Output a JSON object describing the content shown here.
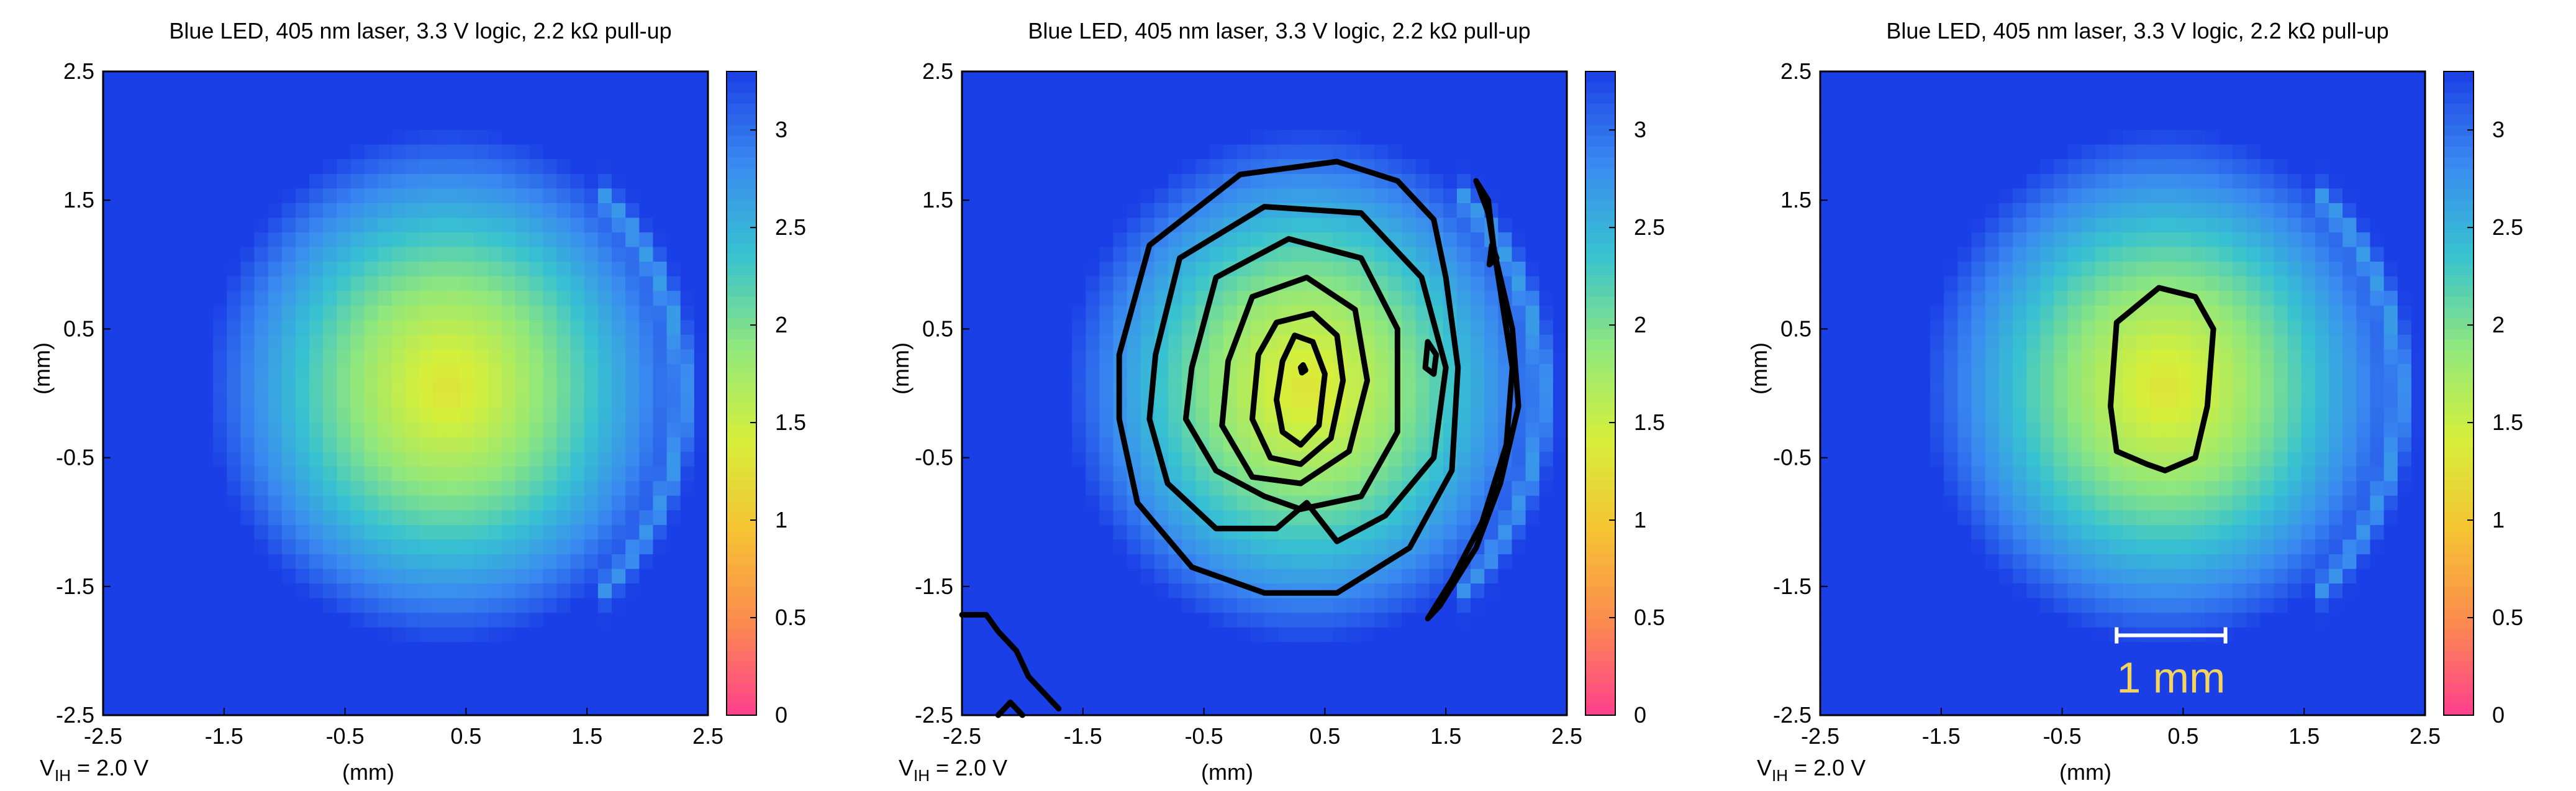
{
  "footer": {
    "label": "V",
    "subscript": "IH",
    "value": " = 2.0 V"
  },
  "colorbar": {
    "min": 0,
    "max": 3.3,
    "ticks": [
      "0",
      "0.5",
      "1",
      "1.5",
      "2",
      "2.5",
      "3"
    ],
    "colors": [
      "#ff3f8e",
      "#fb8a4f",
      "#f5c233",
      "#d6ef3a",
      "#8fe77d",
      "#37c2d1",
      "#3a8af0",
      "#1b3fe6"
    ]
  },
  "chart_data": [
    {
      "type": "heatmap",
      "title": "Blue LED, 405 nm laser, 3.3 V logic, 2.2 kΩ pull-up",
      "xlabel": "(mm)",
      "ylabel": "(mm)",
      "xlim": [
        -2.5,
        2.5
      ],
      "ylim": [
        -2.5,
        2.5
      ],
      "xticks": [
        "-2.5",
        "-1.5",
        "-0.5",
        "0.5",
        "1.5",
        "2.5"
      ],
      "yticks": [
        "2.5",
        "1.5",
        "0.5",
        "-0.5",
        "-1.5",
        "-2.5"
      ],
      "z_range": [
        0,
        3.3
      ],
      "field": {
        "center": [
          0.35,
          0.05
        ],
        "min_value": 1.3,
        "ring_center": [
          0.2,
          0.0
        ],
        "ring_radius": 2.1,
        "ring_x_min": 1.6
      },
      "contours": []
    },
    {
      "type": "heatmap",
      "title": "Blue LED, 405 nm laser, 3.3 V logic, 2.2 kΩ pull-up",
      "xlabel": "(mm)",
      "ylabel": "(mm)",
      "xlim": [
        -2.5,
        2.5
      ],
      "ylim": [
        -2.5,
        2.5
      ],
      "xticks": [
        "-2.5",
        "-1.5",
        "-0.5",
        "0.5",
        "1.5",
        "2.5"
      ],
      "yticks": [
        "2.5",
        "1.5",
        "0.5",
        "-0.5",
        "-1.5",
        "-2.5"
      ],
      "z_range": [
        0,
        3.3
      ],
      "field": {
        "center": [
          0.35,
          0.05
        ],
        "min_value": 1.3,
        "ring_center": [
          0.2,
          0.0
        ],
        "ring_radius": 2.1,
        "ring_x_min": 1.6
      },
      "contours": [
        [
          [
            0.3,
            0.2
          ],
          [
            0.32,
            0.22
          ],
          [
            0.34,
            0.18
          ],
          [
            0.31,
            0.16
          ],
          [
            0.3,
            0.2
          ]
        ],
        [
          [
            0.15,
            0.25
          ],
          [
            0.25,
            0.45
          ],
          [
            0.4,
            0.4
          ],
          [
            0.5,
            0.15
          ],
          [
            0.45,
            -0.25
          ],
          [
            0.3,
            -0.4
          ],
          [
            0.15,
            -0.3
          ],
          [
            0.1,
            -0.05
          ],
          [
            0.15,
            0.25
          ]
        ],
        [
          [
            -0.05,
            0.3
          ],
          [
            0.1,
            0.55
          ],
          [
            0.4,
            0.62
          ],
          [
            0.6,
            0.45
          ],
          [
            0.65,
            0.1
          ],
          [
            0.55,
            -0.35
          ],
          [
            0.3,
            -0.55
          ],
          [
            0.05,
            -0.5
          ],
          [
            -0.1,
            -0.2
          ],
          [
            -0.05,
            0.3
          ]
        ],
        [
          [
            -0.3,
            0.25
          ],
          [
            -0.1,
            0.75
          ],
          [
            0.35,
            0.9
          ],
          [
            0.75,
            0.65
          ],
          [
            0.85,
            0.1
          ],
          [
            0.7,
            -0.45
          ],
          [
            0.3,
            -0.7
          ],
          [
            -0.1,
            -0.65
          ],
          [
            -0.35,
            -0.25
          ],
          [
            -0.3,
            0.25
          ]
        ],
        [
          [
            -0.6,
            0.2
          ],
          [
            -0.4,
            0.9
          ],
          [
            0.2,
            1.2
          ],
          [
            0.8,
            1.05
          ],
          [
            1.1,
            0.5
          ],
          [
            1.1,
            -0.3
          ],
          [
            0.8,
            -0.8
          ],
          [
            0.3,
            -0.9
          ],
          [
            0.0,
            -0.8
          ],
          [
            -0.4,
            -0.6
          ],
          [
            -0.65,
            -0.2
          ],
          [
            -0.6,
            0.2
          ]
        ],
        [
          [
            -0.9,
            0.3
          ],
          [
            -0.7,
            1.05
          ],
          [
            0.0,
            1.45
          ],
          [
            0.8,
            1.4
          ],
          [
            1.3,
            0.9
          ],
          [
            1.5,
            0.2
          ],
          [
            1.4,
            -0.5
          ],
          [
            1.0,
            -0.95
          ],
          [
            0.6,
            -1.15
          ],
          [
            0.35,
            -0.85
          ],
          [
            0.1,
            -1.05
          ],
          [
            -0.4,
            -1.05
          ],
          [
            -0.8,
            -0.7
          ],
          [
            -0.95,
            -0.2
          ],
          [
            -0.9,
            0.3
          ]
        ],
        [
          [
            -1.2,
            0.3
          ],
          [
            -0.95,
            1.15
          ],
          [
            -0.2,
            1.7
          ],
          [
            0.6,
            1.8
          ],
          [
            1.1,
            1.65
          ],
          [
            1.4,
            1.35
          ],
          [
            1.5,
            0.9
          ],
          [
            1.6,
            0.2
          ],
          [
            1.55,
            -0.6
          ],
          [
            1.2,
            -1.2
          ],
          [
            0.6,
            -1.55
          ],
          [
            0.0,
            -1.55
          ],
          [
            -0.6,
            -1.35
          ],
          [
            -1.05,
            -0.85
          ],
          [
            -1.2,
            -0.2
          ],
          [
            -1.2,
            0.3
          ]
        ],
        [
          [
            1.75,
            1.65
          ],
          [
            1.85,
            1.4
          ],
          [
            1.95,
            0.8
          ],
          [
            2.05,
            0.2
          ],
          [
            2.0,
            -0.4
          ],
          [
            1.8,
            -1.0
          ],
          [
            1.55,
            -1.45
          ],
          [
            1.35,
            -1.75
          ],
          [
            1.45,
            -1.65
          ],
          [
            1.75,
            -1.2
          ],
          [
            1.95,
            -0.7
          ],
          [
            2.1,
            -0.1
          ],
          [
            2.05,
            0.5
          ],
          [
            1.9,
            1.1
          ],
          [
            1.85,
            1.5
          ],
          [
            1.75,
            1.65
          ]
        ],
        [
          [
            1.35,
            0.4
          ],
          [
            1.42,
            0.3
          ],
          [
            1.4,
            0.15
          ],
          [
            1.33,
            0.2
          ],
          [
            1.35,
            0.4
          ]
        ],
        [
          [
            1.88,
            1.15
          ],
          [
            1.92,
            1.05
          ],
          [
            1.86,
            1.0
          ],
          [
            1.88,
            1.15
          ]
        ],
        [
          [
            -2.5,
            -1.72
          ],
          [
            -2.3,
            -1.72
          ],
          [
            -2.2,
            -1.85
          ],
          [
            -2.05,
            -2.0
          ],
          [
            -1.95,
            -2.2
          ],
          [
            -1.8,
            -2.35
          ],
          [
            -1.7,
            -2.45
          ]
        ],
        [
          [
            -2.2,
            -2.5
          ],
          [
            -2.1,
            -2.4
          ],
          [
            -2.0,
            -2.5
          ]
        ]
      ]
    },
    {
      "type": "heatmap",
      "title": "Blue LED, 405 nm laser, 3.3 V logic, 2.2 kΩ pull-up",
      "xlabel": "(mm)",
      "ylabel": "(mm)",
      "xlim": [
        -2.5,
        2.5
      ],
      "ylim": [
        -2.5,
        2.5
      ],
      "xticks": [
        "-2.5",
        "-1.5",
        "-0.5",
        "0.5",
        "1.5",
        "2.5"
      ],
      "yticks": [
        "2.5",
        "1.5",
        "0.5",
        "-0.5",
        "-1.5",
        "-2.5"
      ],
      "z_range": [
        0,
        3.3
      ],
      "field": {
        "center": [
          0.35,
          0.05
        ],
        "min_value": 1.3,
        "ring_center": [
          0.2,
          0.0
        ],
        "ring_radius": 2.1,
        "ring_x_min": 1.6
      },
      "contours": [
        [
          [
            -0.05,
            0.55
          ],
          [
            0.3,
            0.82
          ],
          [
            0.6,
            0.75
          ],
          [
            0.75,
            0.5
          ],
          [
            0.7,
            -0.1
          ],
          [
            0.6,
            -0.5
          ],
          [
            0.35,
            -0.6
          ],
          [
            0.2,
            -0.55
          ],
          [
            -0.05,
            -0.45
          ],
          [
            -0.1,
            -0.1
          ],
          [
            -0.05,
            0.55
          ]
        ]
      ],
      "scale_bar": {
        "label": "1 mm",
        "x_start": -0.05,
        "x_end": 0.85,
        "y": -1.88
      }
    }
  ]
}
